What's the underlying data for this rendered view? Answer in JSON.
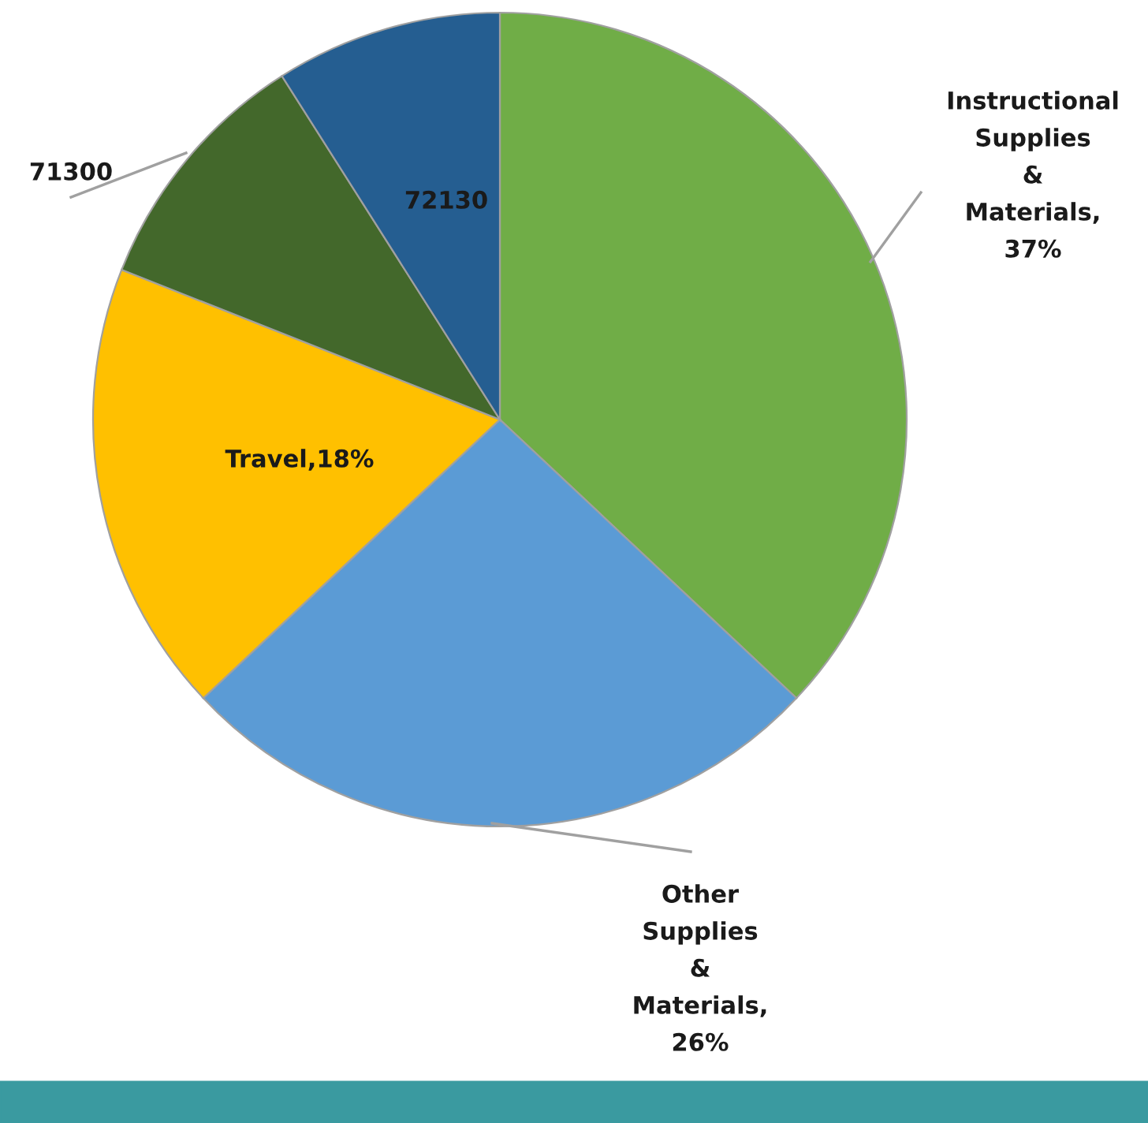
{
  "chart_data": {
    "type": "pie",
    "categories": [
      "Instructional Supplies & Materials",
      "Other Supplies & Materials",
      "Travel",
      "71300",
      "72130"
    ],
    "values": [
      37,
      26,
      18,
      10,
      9
    ],
    "colors": [
      "#70ad47",
      "#5b9bd5",
      "#ffc000",
      "#43682b",
      "#255e91"
    ],
    "value_labels": [
      ", 37%",
      ", 26%",
      ",18%",
      null,
      null
    ],
    "legend": false
  }
}
